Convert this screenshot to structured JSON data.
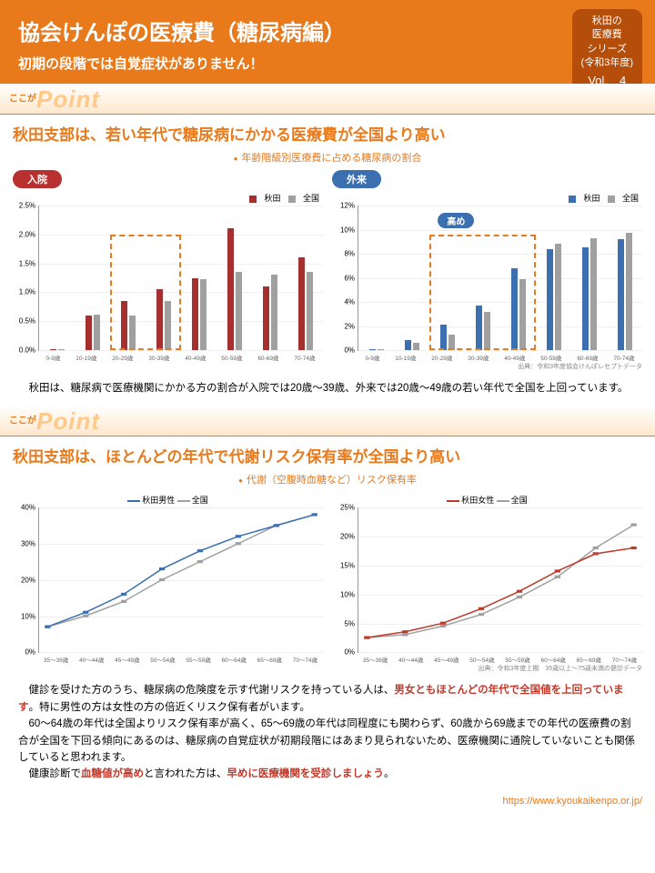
{
  "header": {
    "title": "協会けんぽの医療費（糖尿病編）",
    "subtitle": "初期の段階では自覚症状がありません！",
    "badge_l1": "秋田の",
    "badge_l2": "医療費",
    "badge_l3": "シリーズ",
    "badge_l4": "(令和3年度)",
    "badge_vol": "Vol.　4"
  },
  "point_label_koko": "ここが",
  "point_label": "Point",
  "section1": {
    "title": "秋田支部は、若い年代で糖尿病にかかる医療費が全国より高い",
    "chart_sub": "年齢階級別医療費に占める糖尿病の割合",
    "left_pill": "入院",
    "right_pill": "外来",
    "callout": "高め",
    "legend_a": "秋田",
    "legend_b": "全国",
    "colors": {
      "akita_red": "#a53030",
      "zenkoku_gray": "#a0a0a0",
      "akita_blue": "#3b6fb0"
    },
    "categories": [
      "0-9歳",
      "10-19歳",
      "20-29歳",
      "30-39歳",
      "40-49歳",
      "50-59歳",
      "60-69歳",
      "70-74歳"
    ],
    "inpatient": {
      "ymax": 2.5,
      "ystep": 0.5,
      "yunit": "%",
      "akita": [
        0.02,
        0.6,
        0.85,
        1.05,
        1.25,
        2.1,
        1.1,
        1.6
      ],
      "zenkoku": [
        0.02,
        0.62,
        0.6,
        0.85,
        1.22,
        1.35,
        1.3,
        1.35
      ],
      "highlight": [
        2,
        3
      ]
    },
    "outpatient": {
      "ymax": 12,
      "ystep": 2,
      "yunit": "%",
      "akita": [
        0.1,
        0.8,
        2.1,
        3.7,
        6.8,
        8.4,
        8.5,
        9.2
      ],
      "zenkoku": [
        0.1,
        0.6,
        1.3,
        3.2,
        5.9,
        8.8,
        9.3,
        9.7
      ],
      "highlight": [
        2,
        4
      ]
    },
    "source": "出典：令和3年度協会けんぽレセプトデータ",
    "body": "　秋田は、糖尿病で医療機関にかかる方の割合が入院では20歳～39歳、外来では20歳～49歳の若い年代で全国を上回っています。"
  },
  "section2": {
    "title": "秋田支部は、ほとんどの年代で代謝リスク保有率が全国より高い",
    "chart_sub": "代謝（空腹時血糖など）リスク保有率",
    "legend_male_a": "秋田男性",
    "legend_female_a": "秋田女性",
    "legend_b": "全国",
    "categories": [
      "35～39歳",
      "40～44歳",
      "45～49歳",
      "50～54歳",
      "55～59歳",
      "60～64歳",
      "65～69歳",
      "70～74歳"
    ],
    "male": {
      "ymax": 40,
      "ystep": 10,
      "yunit": "%",
      "akita": [
        7,
        11,
        16,
        23,
        28,
        32,
        35,
        38
      ],
      "zenkoku": [
        7,
        10,
        14,
        20,
        25,
        30,
        35,
        38
      ],
      "color": "#3b6fb0"
    },
    "female": {
      "ymax": 25,
      "ystep": 5,
      "yunit": "%",
      "akita": [
        2.5,
        3.5,
        5.0,
        7.5,
        10.5,
        14,
        17,
        18
      ],
      "zenkoku": [
        2.5,
        3.0,
        4.5,
        6.5,
        9.5,
        13,
        18,
        22
      ],
      "color": "#c0392b"
    },
    "zenkoku_color": "#a0a0a0",
    "source": "出典：令和3年度上期　35歳以上～75歳未満の健診データ",
    "body1_pre": "　健診を受けた方のうち、糖尿病の危険度を示す代謝リスクを持っている人は、",
    "body1_em": "男女ともほとんどの年代で全国値を上回っています",
    "body1_post": "。特に男性の方は女性の方の倍近くリスク保有者がいます。",
    "body2": "　60～64歳の年代は全国よりリスク保有率が高く、65～69歳の年代は同程度にも関わらず、60歳から69歳までの年代の医療費の割合が全国を下回る傾向にあるのは、糖尿病の自覚症状が初期段階にはあまり見られないため、医療機関に通院していないことも関係していると思われます。",
    "body3_pre": "　健康診断で",
    "body3_em1": "血糖値が高め",
    "body3_mid": "と言われた方は、",
    "body3_em2": "早めに医療機関を受診しましょう",
    "body3_post": "。"
  },
  "url": "https://www.kyoukaikenpo.or.jp/"
}
